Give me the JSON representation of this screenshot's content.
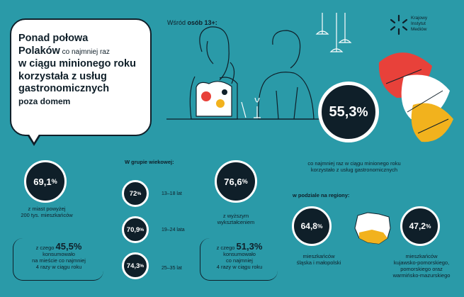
{
  "header": {
    "among_prefix": "Wśród ",
    "among_bold": "osób 13+:"
  },
  "logo": {
    "line1": "Krajowy",
    "line2": "Instytut",
    "line3": "Mediów"
  },
  "headline": {
    "l1": "Ponad połowa",
    "l2a": "Polaków",
    "l2b": " co najmniej raz",
    "l3": "w ciągu minionego roku",
    "l4": "korzystała z usług",
    "l5": "gastronomicznych",
    "l6": "poza domem"
  },
  "main_stat": {
    "value": "55,3",
    "unit": "%",
    "caption_l1": "co najmniej raz w ciągu minionego roku",
    "caption_l2": "korzystało z usług gastronomicznych"
  },
  "city": {
    "value": "69,1",
    "unit": "%",
    "caption_l1": "z miast powyżej",
    "caption_l2": "200 tys. mieszkańców",
    "sub_prefix": "z czego ",
    "sub_value": "45,5%",
    "sub_l1": "konsumowało",
    "sub_l2": "na mieście co najmniej",
    "sub_l3": "4 razy w ciągu roku"
  },
  "age": {
    "heading": "W grupie wiekowej:",
    "groups": [
      {
        "value": "72",
        "unit": "%",
        "label": "13–18 lat"
      },
      {
        "value": "70,9",
        "unit": "%",
        "label": "19–24 lata"
      },
      {
        "value": "74,3",
        "unit": "%",
        "label": "25–35 lat"
      }
    ]
  },
  "education": {
    "value": "76,6",
    "unit": "%",
    "caption_l1": "z wyższym",
    "caption_l2": "wykształceniem",
    "sub_prefix": "z czego ",
    "sub_value": "51,3%",
    "sub_l1": "konsumowało",
    "sub_l2": "co najmniej",
    "sub_l3": "4 razy w ciągu roku"
  },
  "regions": {
    "heading": "w podziale na regiony:",
    "items": [
      {
        "value": "64,8",
        "unit": "%",
        "caption_l1": "mieszkańców",
        "caption_l2": "śląska i małopolski",
        "caption_l3": ""
      },
      {
        "value": "47,2",
        "unit": "%",
        "caption_l1": "mieszkańców",
        "caption_l2": "kujawsko-pomorskiego,",
        "caption_l3": "pomorskiego oraz"
      }
    ],
    "caption_l4": "warmińsko-mazurskiego"
  },
  "colors": {
    "background": "#2a9aa8",
    "dark": "#0f1f29",
    "white": "#ffffff",
    "accent_red": "#e8413a",
    "accent_yellow": "#f2b21d"
  }
}
